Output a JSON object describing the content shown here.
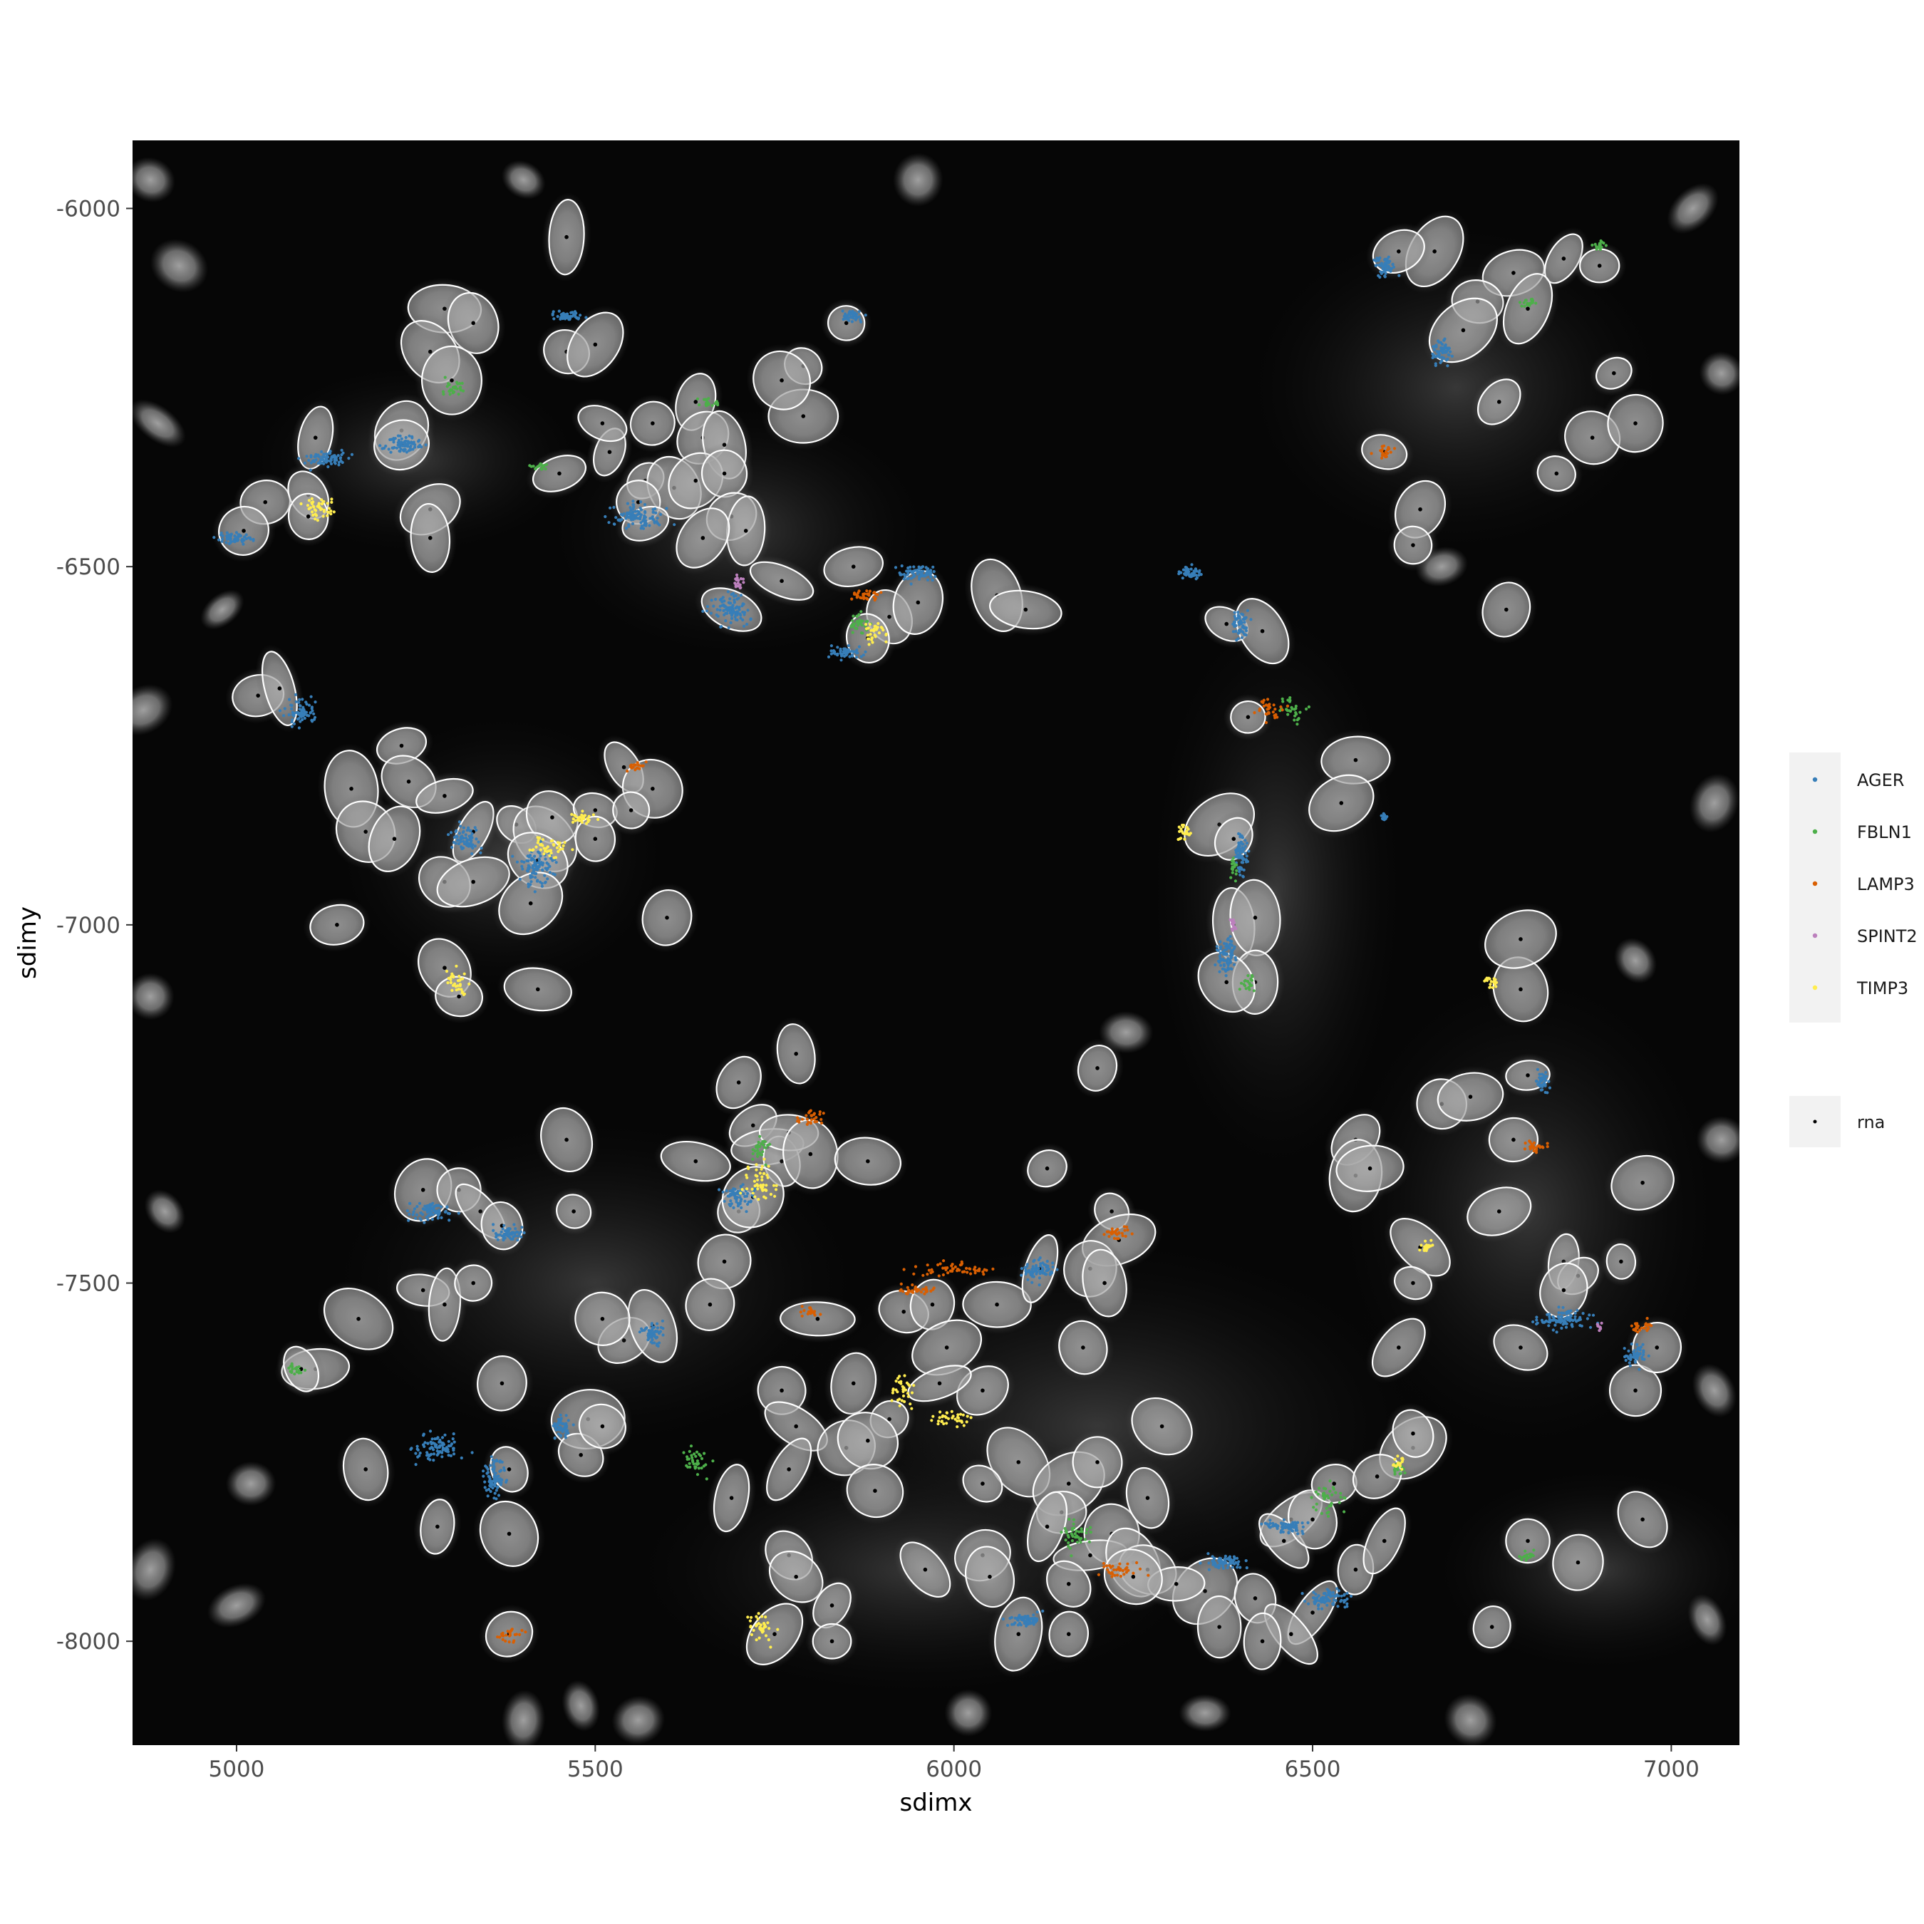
{
  "chart_data": {
    "type": "scatter",
    "title": "",
    "xlabel": "sdimx",
    "ylabel": "sdimy",
    "xlim": [
      4855,
      7095
    ],
    "ylim": [
      -8145,
      -5905
    ],
    "x_ticks": [
      5000,
      5500,
      6000,
      6500,
      7000
    ],
    "y_ticks": [
      -6000,
      -6500,
      -7000,
      -7500,
      -8000
    ],
    "x_tick_labels": [
      "5000",
      "5500",
      "6000",
      "6500",
      "7000"
    ],
    "y_tick_labels": [
      "-6000",
      "-6500",
      "-7000",
      "-7500",
      "-8000"
    ],
    "background": "grayscale fluorescence (nuclear stain) image",
    "cell_outline_color": "#ffffff",
    "cell_centroid_color": "#000000",
    "grid": false,
    "legend_position": "right",
    "series": [
      {
        "name": "AGER",
        "color": "#377EB8",
        "clusters": [
          [
            5130,
            -6350,
            60,
            25
          ],
          [
            5230,
            -6330,
            60,
            25
          ],
          [
            5460,
            -6150,
            40,
            15
          ],
          [
            5560,
            -6430,
            80,
            35
          ],
          [
            5690,
            -6560,
            60,
            50
          ],
          [
            5850,
            -6620,
            50,
            15
          ],
          [
            5860,
            -6150,
            30,
            15
          ],
          [
            5950,
            -6510,
            50,
            30
          ],
          [
            6330,
            -6510,
            30,
            20
          ],
          [
            6400,
            -6580,
            25,
            40
          ],
          [
            6400,
            -6900,
            20,
            60
          ],
          [
            6380,
            -7040,
            25,
            60
          ],
          [
            5320,
            -6880,
            40,
            40
          ],
          [
            5420,
            -6920,
            50,
            60
          ],
          [
            5270,
            -7400,
            60,
            25
          ],
          [
            5380,
            -7430,
            40,
            20
          ],
          [
            5580,
            -7570,
            30,
            40
          ],
          [
            5360,
            -7770,
            30,
            60
          ],
          [
            5700,
            -7380,
            40,
            40
          ],
          [
            6120,
            -7480,
            50,
            30
          ],
          [
            6460,
            -7840,
            60,
            20
          ],
          [
            6380,
            -7890,
            60,
            20
          ],
          [
            6600,
            -6080,
            30,
            30
          ],
          [
            6680,
            -6200,
            30,
            40
          ],
          [
            6850,
            -7550,
            80,
            30
          ],
          [
            6950,
            -7600,
            30,
            30
          ],
          [
            6820,
            -7220,
            20,
            30
          ],
          [
            5280,
            -7730,
            60,
            40
          ],
          [
            6100,
            -7970,
            50,
            20
          ],
          [
            6520,
            -7940,
            60,
            30
          ],
          [
            5000,
            -6460,
            50,
            20
          ],
          [
            5090,
            -6700,
            40,
            40
          ],
          [
            6600,
            -6850,
            10,
            10
          ],
          [
            5450,
            -7700,
            30,
            30
          ]
        ]
      },
      {
        "name": "FBLN1",
        "color": "#4DAF4A",
        "clusters": [
          [
            5300,
            -6250,
            40,
            20
          ],
          [
            5420,
            -6360,
            30,
            15
          ],
          [
            5660,
            -6270,
            30,
            15
          ],
          [
            5870,
            -6580,
            40,
            30
          ],
          [
            5730,
            -7310,
            25,
            40
          ],
          [
            5640,
            -7750,
            40,
            40
          ],
          [
            6170,
            -7850,
            40,
            50
          ],
          [
            6520,
            -7800,
            50,
            40
          ],
          [
            6390,
            -6920,
            10,
            30
          ],
          [
            6410,
            -7080,
            20,
            30
          ],
          [
            6800,
            -6130,
            25,
            15
          ],
          [
            6800,
            -7880,
            25,
            15
          ],
          [
            5080,
            -7620,
            30,
            15
          ],
          [
            6620,
            -7760,
            20,
            20
          ],
          [
            6900,
            -6050,
            20,
            15
          ],
          [
            6470,
            -6700,
            40,
            30
          ]
        ]
      },
      {
        "name": "LAMP3",
        "color": "#D95F02",
        "clusters": [
          [
            6600,
            -6340,
            30,
            20
          ],
          [
            6440,
            -6700,
            40,
            30
          ],
          [
            6810,
            -7310,
            40,
            15
          ],
          [
            6230,
            -7900,
            60,
            20
          ],
          [
            5380,
            -7990,
            40,
            20
          ],
          [
            5560,
            -6780,
            30,
            15
          ],
          [
            5800,
            -7540,
            30,
            15
          ],
          [
            5950,
            -7510,
            60,
            15
          ],
          [
            5800,
            -7270,
            40,
            25
          ],
          [
            6230,
            -7430,
            40,
            20
          ],
          [
            5880,
            -6540,
            50,
            20
          ],
          [
            6960,
            -7560,
            40,
            20
          ],
          [
            6000,
            -7480,
            100,
            20
          ]
        ]
      },
      {
        "name": "SPINT2",
        "color": "#BC80BD",
        "clusters": [
          [
            5700,
            -6520,
            20,
            20
          ],
          [
            6390,
            -7000,
            10,
            20
          ],
          [
            6900,
            -7560,
            10,
            10
          ]
        ]
      },
      {
        "name": "TIMP3",
        "color": "#FFED4F",
        "clusters": [
          [
            5110,
            -6420,
            70,
            30
          ],
          [
            5430,
            -6890,
            60,
            30
          ],
          [
            5310,
            -7080,
            30,
            40
          ],
          [
            6320,
            -6870,
            25,
            30
          ],
          [
            5730,
            -7360,
            50,
            60
          ],
          [
            6660,
            -7450,
            20,
            20
          ],
          [
            6750,
            -7080,
            20,
            20
          ],
          [
            5930,
            -7650,
            40,
            40
          ],
          [
            6000,
            -7690,
            60,
            20
          ],
          [
            5480,
            -6850,
            40,
            20
          ],
          [
            5890,
            -6590,
            40,
            30
          ],
          [
            5730,
            -7980,
            40,
            40
          ],
          [
            6620,
            -7750,
            20,
            20
          ]
        ]
      }
    ],
    "rna_series": {
      "name": "rna",
      "color": "#000000"
    }
  }
}
